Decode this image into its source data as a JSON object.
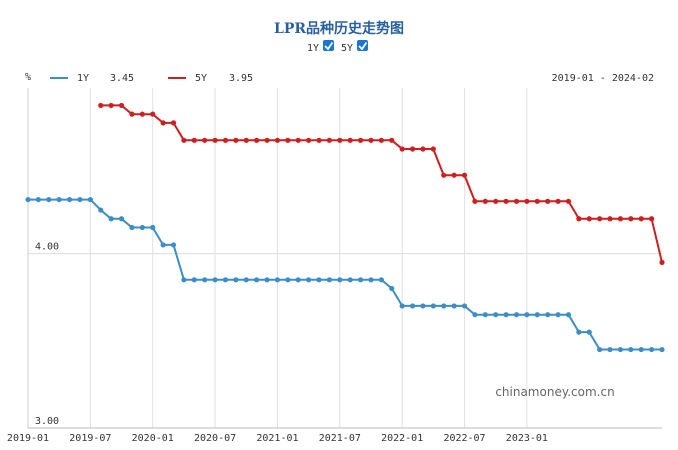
{
  "chart_data": {
    "type": "line",
    "title": "LPR品种历史走势图",
    "unit": "%",
    "date_range": "2019-01 - 2024-02",
    "toggles": [
      {
        "label": "1Y",
        "checked": true
      },
      {
        "label": "5Y",
        "checked": true
      }
    ],
    "ylim": [
      3.0,
      4.95
    ],
    "yticks": [
      {
        "value": 3.0,
        "label": "3.00"
      },
      {
        "value": 4.0,
        "label": "4.00"
      }
    ],
    "xlim": [
      "2019-01",
      "2024-02"
    ],
    "xticks": [
      "2019-01",
      "2019-07",
      "2020-01",
      "2020-07",
      "2021-01",
      "2021-07",
      "2022-01",
      "2022-07",
      "2023-01"
    ],
    "grid": true,
    "legend_position": "top-left",
    "watermark": "chinamoney.com.cn",
    "series": [
      {
        "name": "1Y",
        "latest": "3.45",
        "color": "#3d8dc7",
        "points": [
          [
            "2019-01",
            4.31
          ],
          [
            "2019-02",
            4.31
          ],
          [
            "2019-03",
            4.31
          ],
          [
            "2019-04",
            4.31
          ],
          [
            "2019-05",
            4.31
          ],
          [
            "2019-06",
            4.31
          ],
          [
            "2019-07",
            4.31
          ],
          [
            "2019-08",
            4.25
          ],
          [
            "2019-09",
            4.2
          ],
          [
            "2019-10",
            4.2
          ],
          [
            "2019-11",
            4.15
          ],
          [
            "2019-12",
            4.15
          ],
          [
            "2020-01",
            4.15
          ],
          [
            "2020-02",
            4.05
          ],
          [
            "2020-03",
            4.05
          ],
          [
            "2020-04",
            3.85
          ],
          [
            "2020-05",
            3.85
          ],
          [
            "2020-06",
            3.85
          ],
          [
            "2020-07",
            3.85
          ],
          [
            "2020-08",
            3.85
          ],
          [
            "2020-09",
            3.85
          ],
          [
            "2020-10",
            3.85
          ],
          [
            "2020-11",
            3.85
          ],
          [
            "2020-12",
            3.85
          ],
          [
            "2021-01",
            3.85
          ],
          [
            "2021-02",
            3.85
          ],
          [
            "2021-03",
            3.85
          ],
          [
            "2021-04",
            3.85
          ],
          [
            "2021-05",
            3.85
          ],
          [
            "2021-06",
            3.85
          ],
          [
            "2021-07",
            3.85
          ],
          [
            "2021-08",
            3.85
          ],
          [
            "2021-09",
            3.85
          ],
          [
            "2021-10",
            3.85
          ],
          [
            "2021-11",
            3.85
          ],
          [
            "2021-12",
            3.8
          ],
          [
            "2022-01",
            3.7
          ],
          [
            "2022-02",
            3.7
          ],
          [
            "2022-03",
            3.7
          ],
          [
            "2022-04",
            3.7
          ],
          [
            "2022-05",
            3.7
          ],
          [
            "2022-06",
            3.7
          ],
          [
            "2022-07",
            3.7
          ],
          [
            "2022-08",
            3.65
          ],
          [
            "2022-09",
            3.65
          ],
          [
            "2022-10",
            3.65
          ],
          [
            "2022-11",
            3.65
          ],
          [
            "2022-12",
            3.65
          ],
          [
            "2023-01",
            3.65
          ],
          [
            "2023-02",
            3.65
          ],
          [
            "2023-03",
            3.65
          ],
          [
            "2023-04",
            3.65
          ],
          [
            "2023-05",
            3.65
          ],
          [
            "2023-06",
            3.55
          ],
          [
            "2023-07",
            3.55
          ],
          [
            "2023-08",
            3.45
          ],
          [
            "2023-09",
            3.45
          ],
          [
            "2023-10",
            3.45
          ],
          [
            "2023-11",
            3.45
          ],
          [
            "2023-12",
            3.45
          ],
          [
            "2024-01",
            3.45
          ],
          [
            "2024-02",
            3.45
          ]
        ]
      },
      {
        "name": "5Y",
        "latest": "3.95",
        "color": "#cc1f1f",
        "points": [
          [
            "2019-08",
            4.85
          ],
          [
            "2019-09",
            4.85
          ],
          [
            "2019-10",
            4.85
          ],
          [
            "2019-11",
            4.8
          ],
          [
            "2019-12",
            4.8
          ],
          [
            "2020-01",
            4.8
          ],
          [
            "2020-02",
            4.75
          ],
          [
            "2020-03",
            4.75
          ],
          [
            "2020-04",
            4.65
          ],
          [
            "2020-05",
            4.65
          ],
          [
            "2020-06",
            4.65
          ],
          [
            "2020-07",
            4.65
          ],
          [
            "2020-08",
            4.65
          ],
          [
            "2020-09",
            4.65
          ],
          [
            "2020-10",
            4.65
          ],
          [
            "2020-11",
            4.65
          ],
          [
            "2020-12",
            4.65
          ],
          [
            "2021-01",
            4.65
          ],
          [
            "2021-02",
            4.65
          ],
          [
            "2021-03",
            4.65
          ],
          [
            "2021-04",
            4.65
          ],
          [
            "2021-05",
            4.65
          ],
          [
            "2021-06",
            4.65
          ],
          [
            "2021-07",
            4.65
          ],
          [
            "2021-08",
            4.65
          ],
          [
            "2021-09",
            4.65
          ],
          [
            "2021-10",
            4.65
          ],
          [
            "2021-11",
            4.65
          ],
          [
            "2021-12",
            4.65
          ],
          [
            "2022-01",
            4.6
          ],
          [
            "2022-02",
            4.6
          ],
          [
            "2022-03",
            4.6
          ],
          [
            "2022-04",
            4.6
          ],
          [
            "2022-05",
            4.45
          ],
          [
            "2022-06",
            4.45
          ],
          [
            "2022-07",
            4.45
          ],
          [
            "2022-08",
            4.3
          ],
          [
            "2022-09",
            4.3
          ],
          [
            "2022-10",
            4.3
          ],
          [
            "2022-11",
            4.3
          ],
          [
            "2022-12",
            4.3
          ],
          [
            "2023-01",
            4.3
          ],
          [
            "2023-02",
            4.3
          ],
          [
            "2023-03",
            4.3
          ],
          [
            "2023-04",
            4.3
          ],
          [
            "2023-05",
            4.3
          ],
          [
            "2023-06",
            4.2
          ],
          [
            "2023-07",
            4.2
          ],
          [
            "2023-08",
            4.2
          ],
          [
            "2023-09",
            4.2
          ],
          [
            "2023-10",
            4.2
          ],
          [
            "2023-11",
            4.2
          ],
          [
            "2023-12",
            4.2
          ],
          [
            "2024-01",
            4.2
          ],
          [
            "2024-02",
            3.95
          ]
        ]
      }
    ]
  }
}
